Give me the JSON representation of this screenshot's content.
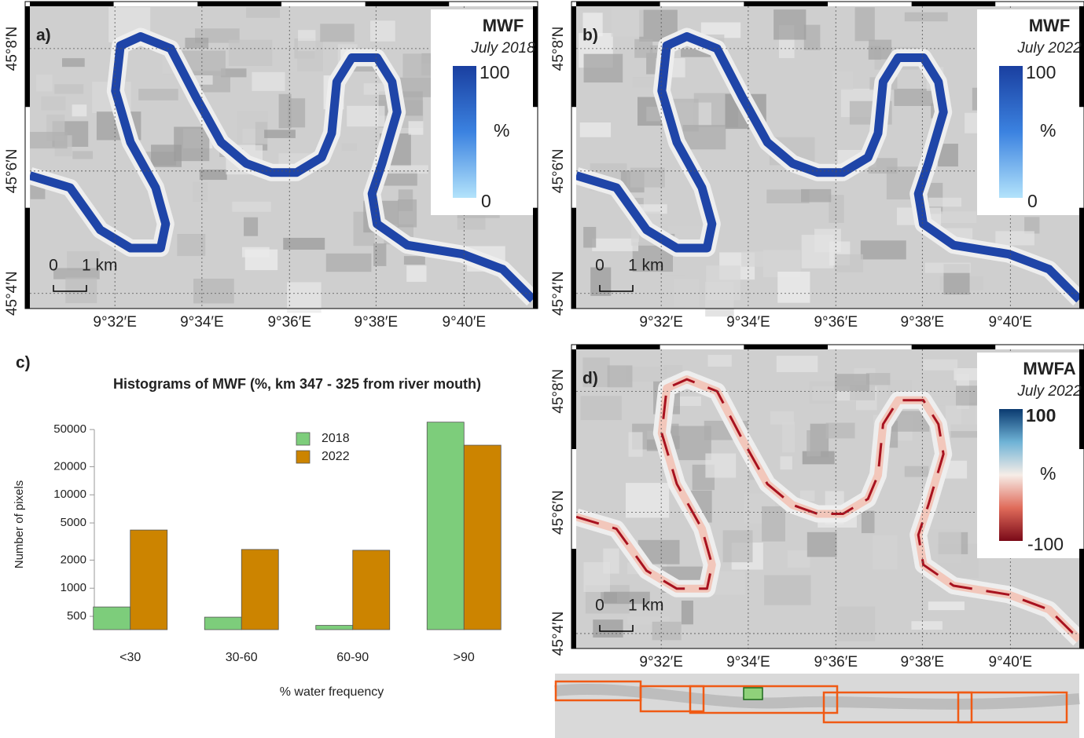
{
  "maps": [
    {
      "label": "a)",
      "legend_title": "MWF",
      "legend_subtitle": "July 2018",
      "scale_max": 100,
      "scale_unit": "%",
      "scale_min": 0,
      "scalebar_start": 0,
      "scalebar_end": "1 km"
    },
    {
      "label": "b)",
      "legend_title": "MWF",
      "legend_subtitle": "July 2022",
      "scale_max": 100,
      "scale_unit": "%",
      "scale_min": 0,
      "scalebar_start": 0,
      "scalebar_end": "1 km"
    },
    {
      "label": "d)",
      "legend_title": "MWFA",
      "legend_subtitle": "July 2022",
      "scale_max": 100,
      "scale_unit": "%",
      "scale_min": -100,
      "scalebar_start": 0,
      "scalebar_end": "1 km"
    }
  ],
  "lat_labels": [
    "45°8′N",
    "45°6′N",
    "45°4′N"
  ],
  "lon_labels": [
    "9°32′E",
    "9°34′E",
    "9°36′E",
    "9°38′E",
    "9°40′E"
  ],
  "chart_data": {
    "type": "bar",
    "panel_label": "c)",
    "title": "Histograms of MWF (%, km 347 - 325 from river mouth)",
    "categories": [
      "<30",
      "30-60",
      "60-90",
      ">90"
    ],
    "series": [
      {
        "name": "2018",
        "color": "#7dcd7b",
        "values": [
          630,
          490,
          400,
          60000
        ]
      },
      {
        "name": "2022",
        "color": "#cc8400",
        "values": [
          4200,
          2600,
          2550,
          34000
        ]
      }
    ],
    "y_label": "Number of pixels",
    "x_label": "% water frequency",
    "log_y": true,
    "ylim": [
      360,
      62000
    ],
    "yticks": [
      500,
      1000,
      2000,
      5000,
      10000,
      20000,
      50000
    ]
  }
}
